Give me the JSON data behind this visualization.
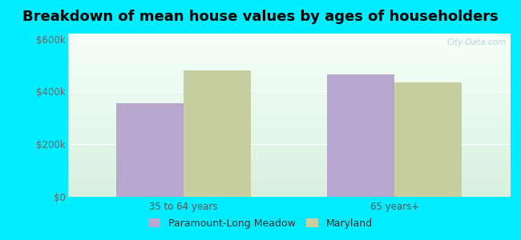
{
  "title": "Breakdown of mean house values by ages of householders",
  "categories": [
    "35 to 64 years",
    "65 years+"
  ],
  "series": {
    "Paramount-Long Meadow": [
      355000,
      465000
    ],
    "Maryland": [
      480000,
      435000
    ]
  },
  "bar_colors": {
    "Paramount-Long Meadow": "#b8a8d0",
    "Maryland": "#c8cea0"
  },
  "ylim": [
    0,
    620000
  ],
  "yticks": [
    0,
    200000,
    400000,
    600000
  ],
  "ytick_labels": [
    "$0",
    "$200k",
    "$400k",
    "$600k"
  ],
  "background_color": "#00eeff",
  "plot_bg_top": "#f5fff8",
  "plot_bg_bottom": "#d8f0e0",
  "title_fontsize": 13,
  "tick_fontsize": 8.5,
  "legend_fontsize": 9,
  "bar_width": 0.32,
  "watermark": "City-Data.com"
}
